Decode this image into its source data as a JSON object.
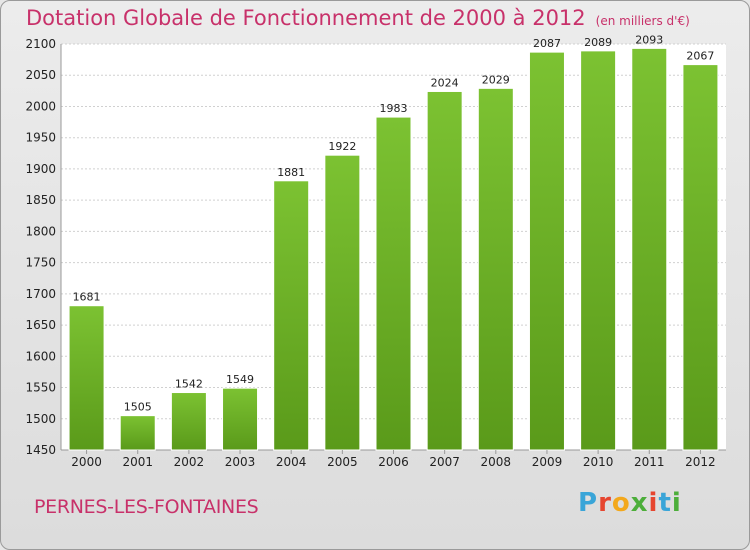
{
  "header": {
    "title": "Dotation Globale de Fonctionnement de 2000 à 2012",
    "unit": "(en milliers d'€)"
  },
  "footer": {
    "city": "PERNES-LES-FONTAINES",
    "logo_letters": [
      "P",
      "r",
      "o",
      "x",
      "i",
      "t",
      "i"
    ],
    "logo_colors": [
      "#3aa5d8",
      "#e6452f",
      "#f3a81c",
      "#4cae3a",
      "#e6452f",
      "#3aa5d8",
      "#4cae3a"
    ]
  },
  "chart_data": {
    "type": "bar",
    "categories": [
      "2000",
      "2001",
      "2002",
      "2003",
      "2004",
      "2005",
      "2006",
      "2007",
      "2008",
      "2009",
      "2010",
      "2011",
      "2012"
    ],
    "values": [
      1681,
      1505,
      1542,
      1549,
      1881,
      1922,
      1983,
      2024,
      2029,
      2087,
      2089,
      2093,
      2067
    ],
    "title": "Dotation Globale de Fonctionnement de 2000 à 2012",
    "ylim": [
      1450,
      2100
    ],
    "yticks": [
      1450,
      1500,
      1550,
      1600,
      1650,
      1700,
      1750,
      1800,
      1850,
      1900,
      1950,
      2000,
      2050,
      2100
    ],
    "grid": true,
    "bar_color": "#7cc232",
    "bar_color_dark": "#5a9a1a"
  }
}
